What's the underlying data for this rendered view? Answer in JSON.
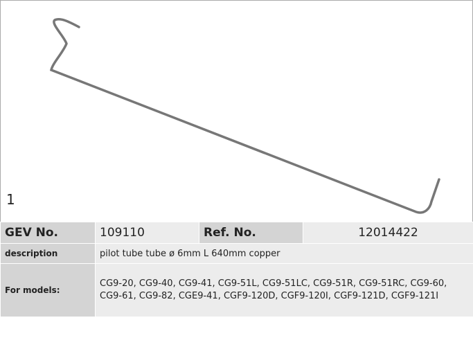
{
  "figure_label": "1",
  "table": {
    "rows": [
      [
        "GEV No.",
        "109110",
        "Ref. No.",
        "12014422"
      ],
      [
        "description",
        "pilot tube  tube ø 6mm L 640mm copper"
      ],
      [
        "For models:",
        "CG9-20, CG9-40, CG9-41, CG9-51L, CG9-51LC, CG9-51R, CG9-51RC, CG9-60, CG9-61, CG9-82, CGE9-41, CGF9-120D, CGF9-120I, CGF9-121D, CGF9-121I"
      ]
    ]
  }
}
